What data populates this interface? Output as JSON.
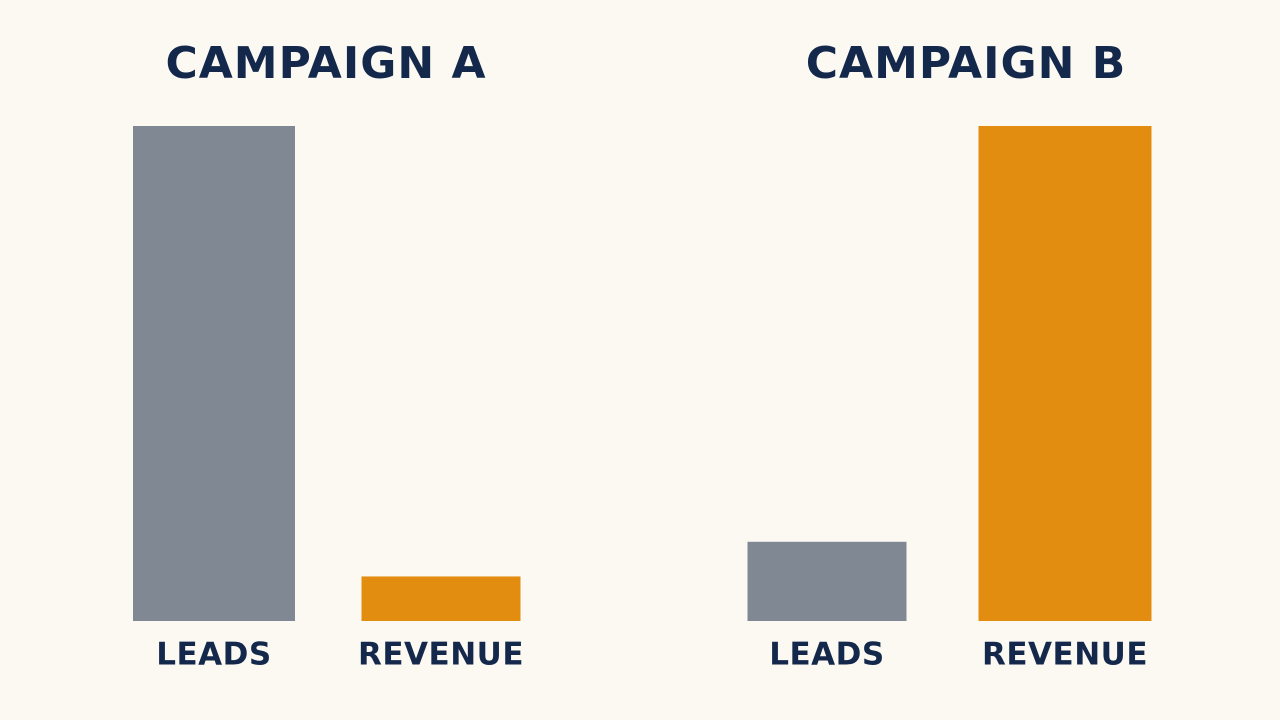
{
  "chart_data": [
    {
      "type": "bar",
      "title": "CAMPAIGN A",
      "categories": [
        "LEADS",
        "REVENUE"
      ],
      "values": [
        100,
        9
      ],
      "colors": [
        "#7f8893",
        "#e38d10"
      ],
      "ylim": [
        0,
        100
      ]
    },
    {
      "type": "bar",
      "title": "CAMPAIGN B",
      "categories": [
        "LEADS",
        "REVENUE"
      ],
      "values": [
        16,
        100
      ],
      "colors": [
        "#7f8893",
        "#e38d10"
      ],
      "ylim": [
        0,
        100
      ]
    }
  ]
}
